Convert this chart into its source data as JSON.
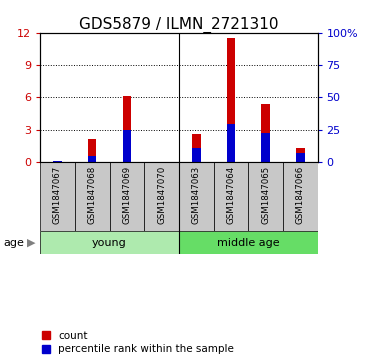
{
  "title": "GDS5879 / ILMN_2721310",
  "samples": [
    "GSM1847067",
    "GSM1847068",
    "GSM1847069",
    "GSM1847070",
    "GSM1847063",
    "GSM1847064",
    "GSM1847065",
    "GSM1847066"
  ],
  "red_values": [
    0.0,
    2.1,
    6.1,
    0.0,
    2.6,
    11.5,
    5.4,
    1.3
  ],
  "blue_values": [
    0.12,
    0.55,
    3.0,
    0.0,
    1.3,
    3.5,
    2.7,
    0.85
  ],
  "ylim_left": [
    0,
    12
  ],
  "ylim_right": [
    0,
    100
  ],
  "yticks_left": [
    0,
    3,
    6,
    9,
    12
  ],
  "yticks_right": [
    0,
    25,
    50,
    75,
    100
  ],
  "ytick_labels_right": [
    "0",
    "25",
    "50",
    "75",
    "100%"
  ],
  "groups": [
    {
      "label": "young",
      "start": 0,
      "end": 4
    },
    {
      "label": "middle age",
      "start": 4,
      "end": 8
    }
  ],
  "group_divider": 4,
  "age_label": "age",
  "bar_width": 0.25,
  "red_color": "#CC0000",
  "blue_color": "#0000CC",
  "legend_red": "count",
  "legend_blue": "percentile rank within the sample",
  "bg_label": "#C8C8C8",
  "bg_group_young": "#AEEAAE",
  "bg_group_middle": "#66DD66",
  "title_fontsize": 11,
  "tick_fontsize": 8,
  "label_fontsize": 8
}
